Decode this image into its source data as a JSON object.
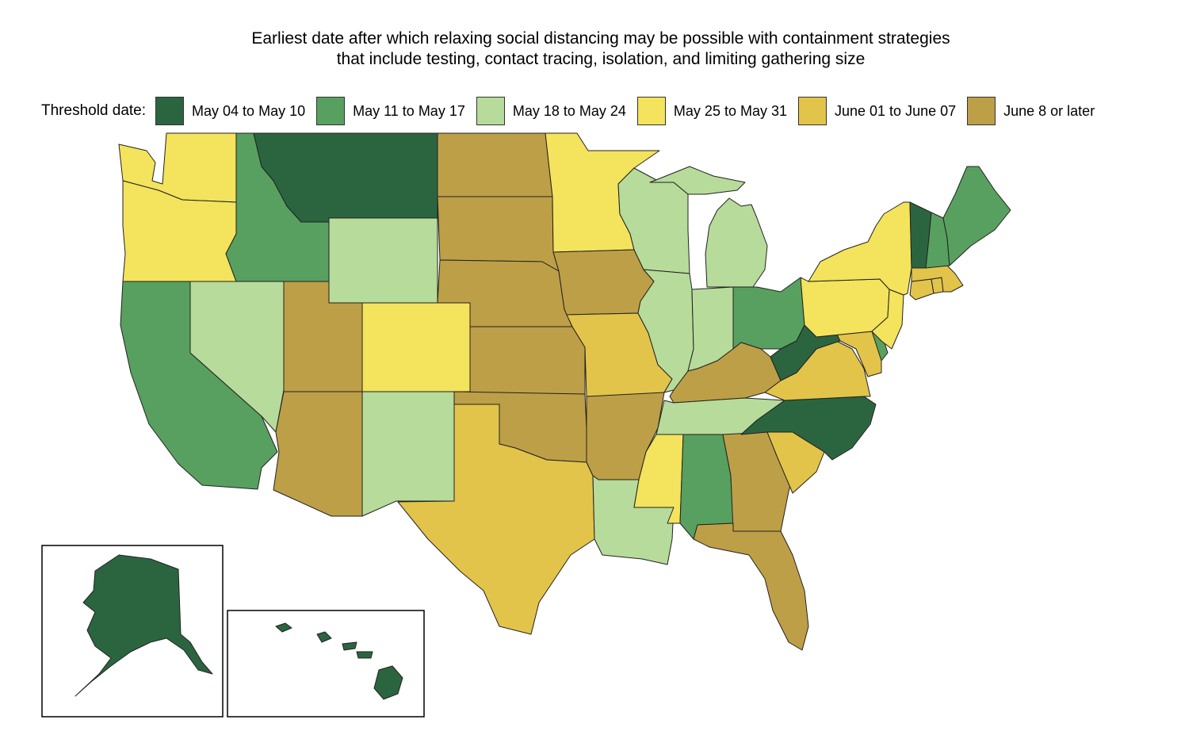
{
  "title": {
    "line1": "Earliest date after which relaxing social distancing may be possible with containment strategies",
    "line2": "that include testing, contact tracing, isolation, and limiting gathering size"
  },
  "legend": {
    "label": "Threshold date:",
    "items": [
      {
        "id": "c1",
        "label": "May 04 to May 10",
        "color": "#2b653f"
      },
      {
        "id": "c2",
        "label": "May 11 to May 17",
        "color": "#58a05f"
      },
      {
        "id": "c3",
        "label": "May 18 to May 24",
        "color": "#b7db9a"
      },
      {
        "id": "c4",
        "label": "May 25 to May 31",
        "color": "#f4e35c"
      },
      {
        "id": "c5",
        "label": "June 01 to June 07",
        "color": "#e2c44b"
      },
      {
        "id": "c6",
        "label": "June 8 or later",
        "color": "#bd9f47"
      }
    ]
  },
  "states": {
    "WA": "c4",
    "OR": "c4",
    "CA": "c2",
    "NV": "c3",
    "ID": "c2",
    "MT": "c1",
    "WY": "c3",
    "UT": "c6",
    "AZ": "c6",
    "CO": "c4",
    "NM": "c3",
    "ND": "c6",
    "SD": "c6",
    "NE": "c6",
    "KS": "c6",
    "OK": "c6",
    "TX": "c5",
    "MN": "c4",
    "IA": "c6",
    "MO": "c5",
    "AR": "c6",
    "LA": "c3",
    "WI": "c3",
    "IL": "c3",
    "MI": "c3",
    "IN": "c3",
    "OH": "c2",
    "KY": "c6",
    "TN": "c3",
    "MS": "c4",
    "AL": "c2",
    "GA": "c6",
    "FL": "c6",
    "SC": "c5",
    "NC": "c1",
    "VA": "c5",
    "WV": "c1",
    "MD": "c5",
    "DE": "c2",
    "NJ": "c4",
    "PA": "c4",
    "NY": "c4",
    "CT": "c5",
    "RI": "c5",
    "MA": "c5",
    "VT": "c1",
    "NH": "c2",
    "ME": "c2",
    "AK": "c1",
    "HI": "c1"
  }
}
